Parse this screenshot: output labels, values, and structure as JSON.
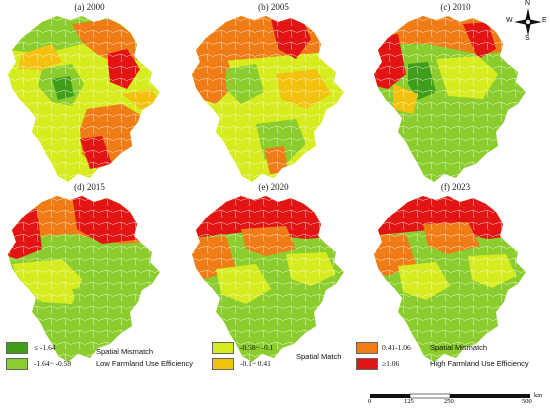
{
  "panels": [
    {
      "id": "a",
      "title": "(a) 2000"
    },
    {
      "id": "b",
      "title": "(b) 2005"
    },
    {
      "id": "c",
      "title": "(c) 2010"
    },
    {
      "id": "d",
      "title": "(d) 2015"
    },
    {
      "id": "e",
      "title": "(e) 2020"
    },
    {
      "id": "f",
      "title": "(f) 2023"
    }
  ],
  "compass": {
    "n": "N",
    "s": "S",
    "e": "E",
    "w": "W"
  },
  "colors": {
    "c1": "#3f9e1a",
    "c2": "#8ccd2e",
    "c3": "#d6ec1e",
    "c4": "#f3c20e",
    "c5": "#f07c16",
    "c6": "#e31414"
  },
  "legend": {
    "items": [
      {
        "key": "c1",
        "label": "≤ -1.64"
      },
      {
        "key": "c2",
        "label": "-1.64~ -0.58"
      },
      {
        "key": "c3",
        "label": "-0.58~ -0.1"
      },
      {
        "key": "c4",
        "label": "-0.1~ 0.41"
      },
      {
        "key": "c5",
        "label": "0.41-1.06"
      },
      {
        "key": "c6",
        "label": "≥1.06"
      }
    ],
    "group_low_title": "Spatial Mismatch",
    "group_low_sub": "Low Farmland Use Efficiency",
    "group_mid": "Spatial Match",
    "group_high_title": "Spatial Mismatch",
    "group_high_sub": "High Farmland Use Efficiency"
  },
  "scale": {
    "ticks": [
      "0",
      "125",
      "250",
      "500"
    ],
    "unit": "km"
  }
}
